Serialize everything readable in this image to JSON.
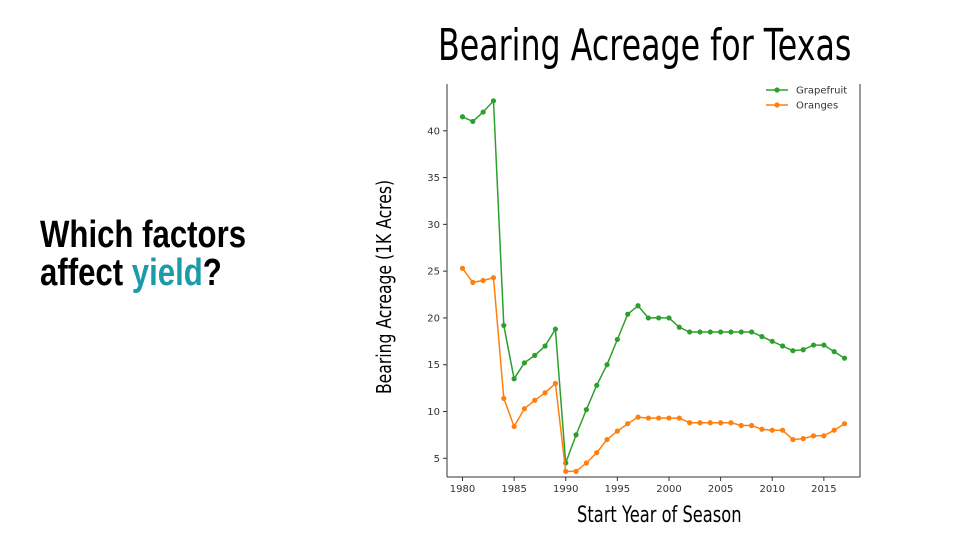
{
  "heading": {
    "line1": "Which factors",
    "line2_prefix": "affect ",
    "line2_accent": "yield",
    "line2_suffix": "?"
  },
  "colors": {
    "accent": "#1b9aaa",
    "grapefruit": "#2ca02c",
    "oranges": "#ff7f0e"
  },
  "chart_data": {
    "type": "line",
    "title": "Bearing Acreage for Texas",
    "xlabel": "Start Year of Season",
    "ylabel": "Bearing Acreage (1K Acres)",
    "xlim": [
      1978.5,
      2018.5
    ],
    "ylim": [
      3,
      45
    ],
    "xticks": [
      1980,
      1985,
      1990,
      1995,
      2000,
      2005,
      2010,
      2015
    ],
    "yticks": [
      5,
      10,
      15,
      20,
      25,
      30,
      35,
      40
    ],
    "grid": false,
    "legend": "top-right",
    "x": [
      1980,
      1981,
      1982,
      1983,
      1984,
      1985,
      1986,
      1987,
      1988,
      1989,
      1990,
      1991,
      1992,
      1993,
      1994,
      1995,
      1996,
      1997,
      1998,
      1999,
      2000,
      2001,
      2002,
      2003,
      2004,
      2005,
      2006,
      2007,
      2008,
      2009,
      2010,
      2011,
      2012,
      2013,
      2014,
      2015,
      2016,
      2017
    ],
    "series": [
      {
        "name": "Grapefruit",
        "values": [
          41.5,
          41.0,
          42.0,
          43.2,
          19.2,
          13.5,
          15.2,
          16.0,
          17.0,
          18.8,
          4.5,
          7.5,
          10.2,
          12.8,
          15.0,
          17.7,
          20.4,
          21.3,
          20.0,
          20.0,
          20.0,
          19.0,
          18.5,
          18.5,
          18.5,
          18.5,
          18.5,
          18.5,
          18.5,
          18.0,
          17.5,
          17.0,
          16.5,
          16.6,
          17.1,
          17.1,
          16.4,
          15.7
        ]
      },
      {
        "name": "Oranges",
        "values": [
          25.3,
          23.8,
          24.0,
          24.3,
          11.4,
          8.4,
          10.3,
          11.2,
          12.0,
          13.0,
          3.6,
          3.6,
          4.5,
          5.6,
          7.0,
          7.9,
          8.7,
          9.4,
          9.3,
          9.3,
          9.3,
          9.3,
          8.8,
          8.8,
          8.8,
          8.8,
          8.8,
          8.5,
          8.5,
          8.1,
          8.0,
          8.0,
          7.0,
          7.1,
          7.4,
          7.4,
          8.0,
          8.7
        ]
      }
    ]
  }
}
